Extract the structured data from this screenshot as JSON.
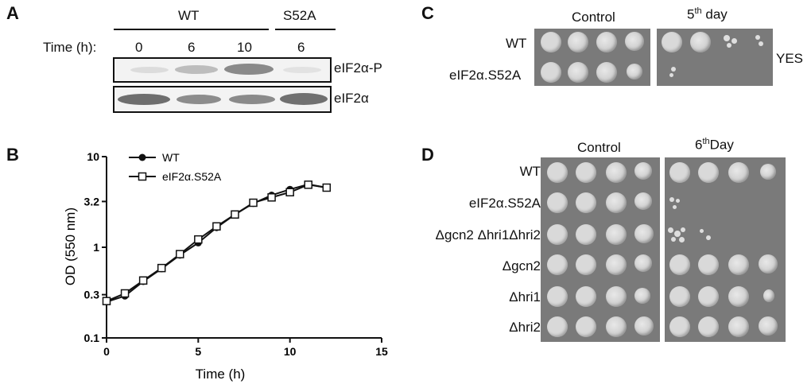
{
  "panels": {
    "A": {
      "label": "A",
      "time_label": "Time (h):",
      "groups": [
        "WT",
        "S52A"
      ],
      "times": [
        "0",
        "6",
        "10",
        "6"
      ],
      "blot_labels": [
        "eIF2α-P",
        "eIF2α"
      ]
    },
    "B": {
      "label": "B"
    },
    "C": {
      "label": "C",
      "headers": [
        "Control",
        "5",
        "th",
        "day"
      ],
      "rows": [
        "WT",
        "eIF2α.S52A"
      ],
      "medium": "YES"
    },
    "D": {
      "label": "D",
      "headers": [
        "Control",
        "6",
        "th",
        "Day"
      ],
      "rows": [
        "WT",
        "eIF2α.S52A",
        "Δgcn2 Δhri1Δhri2",
        "Δgcn2",
        "Δhri1",
        "Δhri2"
      ]
    }
  },
  "chart_data": {
    "type": "line",
    "xlabel": "Time (h)",
    "ylabel": "OD (550 nm)",
    "xlim": [
      0,
      15
    ],
    "ylim": [
      0.1,
      10
    ],
    "yscale": "log",
    "xticks": [
      "0",
      "5",
      "10",
      "15"
    ],
    "yticks": [
      "0.1",
      "0.3",
      "1",
      "3.2",
      "10"
    ],
    "ytick_values": [
      0.1,
      0.3,
      1,
      3.2,
      10
    ],
    "legend_position": "top-left",
    "series": [
      {
        "name": "WT",
        "marker": "filled-circle",
        "x": [
          0,
          1,
          2,
          3,
          4,
          5,
          6,
          7,
          8,
          9,
          10,
          11,
          12
        ],
        "y": [
          0.25,
          0.29,
          0.42,
          0.58,
          0.82,
          1.12,
          1.65,
          2.3,
          3.05,
          3.75,
          4.35,
          4.95,
          4.55
        ]
      },
      {
        "name": "eIF2α.S52A",
        "marker": "open-square",
        "x": [
          0,
          1,
          2,
          3,
          4,
          5,
          6,
          7,
          8,
          9,
          10,
          11,
          12
        ],
        "y": [
          0.255,
          0.31,
          0.43,
          0.59,
          0.84,
          1.22,
          1.7,
          2.3,
          3.1,
          3.55,
          4.05,
          4.9,
          4.55
        ]
      }
    ]
  }
}
